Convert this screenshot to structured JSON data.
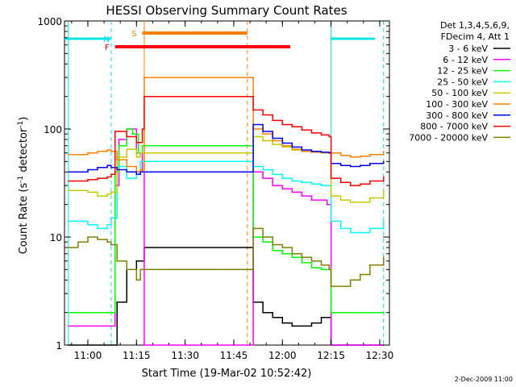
{
  "chart_data": {
    "type": "line",
    "title": "HESSI Observing Summary Count Rates",
    "xlabel": "Start Time (19-Mar-02 10:52:42)",
    "ylabel_main": "Count Rate (s",
    "ylabel_sup1": "-1",
    "ylabel_mid": " detector",
    "ylabel_sup2": "-1",
    "ylabel_end": ")",
    "footer_date": "2-Dec-2009 11:00",
    "y_scale": "log",
    "ylim": [
      1,
      1000
    ],
    "xlim_minutes": [
      10.88,
      12.55
    ],
    "x_ticks": [
      {
        "t": 11.0,
        "label": "11:00"
      },
      {
        "t": 11.25,
        "label": "11:15"
      },
      {
        "t": 11.5,
        "label": "11:30"
      },
      {
        "t": 11.75,
        "label": "11:45"
      },
      {
        "t": 12.0,
        "label": "12:00"
      },
      {
        "t": 12.25,
        "label": "12:15"
      },
      {
        "t": 12.5,
        "label": "12:30"
      }
    ],
    "y_ticks": [
      {
        "v": 1,
        "label": "1"
      },
      {
        "v": 10,
        "label": "10"
      },
      {
        "v": 100,
        "label": "100"
      },
      {
        "v": 1000,
        "label": "1000"
      }
    ],
    "legend_header": [
      "Det 1,3,4,5,6,9,",
      "FDecim 4, Att 1"
    ],
    "flags": [
      {
        "label": "N",
        "color": "#00e5ee",
        "t0": 11.14,
        "t1": 11.14
      },
      {
        "label": "F",
        "color": "#ff0000",
        "t0": 11.14,
        "t1": 12.04
      },
      {
        "label": "S",
        "color": "#ff8000",
        "t0": 11.28,
        "t1": 11.82
      }
    ],
    "vertical_markers": [
      {
        "t": 11.12,
        "color": "#00e5ee",
        "style": "dash"
      },
      {
        "t": 11.29,
        "color": "#ff8000",
        "style": "solid"
      },
      {
        "t": 11.82,
        "color": "#ff8000",
        "style": "dash"
      },
      {
        "t": 12.25,
        "color": "#00e5ee",
        "style": "solid"
      },
      {
        "t": 12.52,
        "color": "#00e5ee",
        "style": "dash"
      },
      {
        "t": 10.9,
        "color": "#00e5ee",
        "style": "solid"
      }
    ],
    "series": [
      {
        "name": "3 - 6 keV",
        "color": "#000000",
        "x": [
          10.9,
          11.12,
          11.15,
          11.2,
          11.25,
          11.27,
          11.29,
          11.85,
          11.9,
          11.95,
          12.0,
          12.05,
          12.1,
          12.15,
          12.2,
          12.25,
          12.3,
          12.4,
          12.52
        ],
        "y": [
          1,
          1,
          2.5,
          5,
          6,
          6,
          8,
          2.5,
          2,
          1.8,
          1.6,
          1.5,
          1.5,
          1.6,
          1.8,
          1,
          1,
          1,
          1
        ]
      },
      {
        "name": "6 - 12 keV",
        "color": "#ff00ff",
        "x": [
          10.9,
          11.12,
          11.14,
          11.16,
          11.2,
          11.25,
          11.28,
          11.29,
          11.85,
          11.9,
          11.95,
          12.0,
          12.05,
          12.1,
          12.15,
          12.2,
          12.23,
          12.25,
          12.3,
          12.4,
          12.52
        ],
        "y": [
          1.5,
          1.5,
          30,
          80,
          100,
          60,
          40,
          1,
          40,
          35,
          30,
          28,
          26,
          24,
          22,
          22,
          20,
          1,
          1,
          1,
          1
        ]
      },
      {
        "name": "12 - 25 keV",
        "color": "#00ff00",
        "x": [
          10.9,
          11.12,
          11.14,
          11.16,
          11.2,
          11.23,
          11.26,
          11.28,
          11.85,
          11.9,
          11.95,
          12.0,
          12.05,
          12.1,
          12.15,
          12.2,
          12.23,
          12.25,
          12.3,
          12.52
        ],
        "y": [
          2,
          2,
          40,
          70,
          100,
          90,
          60,
          70,
          10,
          9,
          7.5,
          7,
          6.5,
          5.8,
          5.2,
          5,
          5,
          2,
          2,
          2
        ]
      },
      {
        "name": "25 - 50 keV",
        "color": "#00ffff",
        "x": [
          10.9,
          11.0,
          11.05,
          11.1,
          11.12,
          11.15,
          11.2,
          11.25,
          11.27,
          11.85,
          11.9,
          11.95,
          12.0,
          12.05,
          12.1,
          12.15,
          12.2,
          12.24,
          12.25,
          12.3,
          12.35,
          12.4,
          12.45,
          12.52
        ],
        "y": [
          14,
          13,
          12,
          13,
          15,
          45,
          35,
          38,
          50,
          45,
          42,
          38,
          35,
          33,
          32,
          31,
          30,
          30,
          14,
          12,
          11,
          11,
          12,
          14
        ]
      },
      {
        "name": "50 - 100 keV",
        "color": "#c8c800",
        "x": [
          10.9,
          11.0,
          11.05,
          11.1,
          11.12,
          11.15,
          11.2,
          11.25,
          11.27,
          11.85,
          11.9,
          11.95,
          12.0,
          12.05,
          12.1,
          12.15,
          12.2,
          12.24,
          12.25,
          12.3,
          12.35,
          12.4,
          12.45,
          12.52
        ],
        "y": [
          27,
          26,
          24,
          25,
          26,
          55,
          65,
          55,
          60,
          85,
          78,
          72,
          68,
          64,
          62,
          61,
          60,
          60,
          24,
          22,
          21,
          21,
          23,
          27
        ]
      },
      {
        "name": "100 - 300 keV",
        "color": "#ff8000",
        "x": [
          10.9,
          11.0,
          11.05,
          11.1,
          11.12,
          11.15,
          11.2,
          11.25,
          11.27,
          11.29,
          11.85,
          11.9,
          11.95,
          12.0,
          12.05,
          12.1,
          12.15,
          12.2,
          12.25,
          12.3,
          12.35,
          12.4,
          12.45,
          12.52
        ],
        "y": [
          58,
          60,
          62,
          64,
          62,
          52,
          45,
          40,
          42,
          300,
          100,
          90,
          78,
          70,
          65,
          62,
          61,
          61,
          60,
          57,
          55,
          56,
          58,
          62
        ]
      },
      {
        "name": "300 - 800 keV",
        "color": "#0000ff",
        "x": [
          10.9,
          11.0,
          11.05,
          11.1,
          11.12,
          11.15,
          11.2,
          11.25,
          11.27,
          11.85,
          11.9,
          11.95,
          12.0,
          12.05,
          12.1,
          12.15,
          12.2,
          12.24,
          12.25,
          12.3,
          12.35,
          12.4,
          12.45,
          12.52
        ],
        "y": [
          40,
          42,
          44,
          46,
          44,
          42,
          40,
          38,
          40,
          110,
          95,
          82,
          74,
          68,
          64,
          62,
          61,
          60,
          48,
          46,
          45,
          46,
          48,
          50
        ]
      },
      {
        "name": "800 - 7000 keV",
        "color": "#ff0000",
        "x": [
          10.9,
          11.0,
          11.05,
          11.1,
          11.12,
          11.14,
          11.2,
          11.25,
          11.28,
          11.29,
          11.85,
          11.9,
          11.95,
          12.0,
          12.05,
          12.1,
          12.15,
          12.2,
          12.24,
          12.25,
          12.3,
          12.35,
          12.4,
          12.45,
          12.52
        ],
        "y": [
          33,
          34,
          35,
          36,
          38,
          95,
          85,
          75,
          100,
          200,
          150,
          135,
          120,
          110,
          105,
          98,
          92,
          88,
          85,
          35,
          32,
          30,
          31,
          33,
          36
        ]
      },
      {
        "name": "7000 - 20000 keV",
        "color": "#808000",
        "x": [
          10.9,
          10.95,
          11.0,
          11.05,
          11.1,
          11.12,
          11.15,
          11.2,
          11.25,
          11.27,
          11.85,
          11.9,
          11.95,
          12.0,
          12.05,
          12.1,
          12.15,
          12.2,
          12.24,
          12.25,
          12.3,
          12.35,
          12.4,
          12.45,
          12.52
        ],
        "y": [
          8,
          9,
          10,
          9.5,
          9,
          8.5,
          6,
          5,
          4,
          5,
          12,
          10,
          8.5,
          8,
          7,
          6.5,
          6,
          5.5,
          5,
          3.5,
          3.5,
          4,
          4.5,
          5.5,
          6.5
        ]
      }
    ]
  }
}
